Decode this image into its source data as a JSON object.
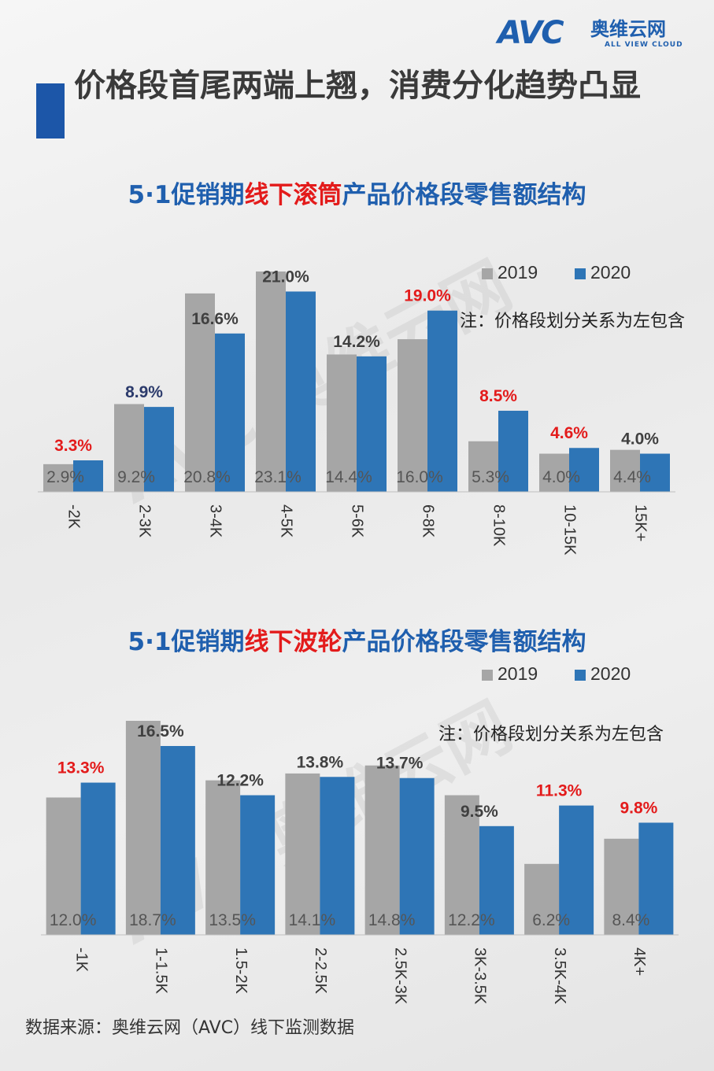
{
  "brand": {
    "logo_text": "AVC",
    "logo_cn": "奥维云网",
    "logo_en": "ALL VIEW CLOUD"
  },
  "headline": "价格段首尾两端上翘，消费分化趋势凸显",
  "colors": {
    "y2019": "#a6a6a6",
    "y2020": "#2e75b6",
    "title_blue": "#1f5fae",
    "highlight_red": "#e31b1b",
    "label_dark": "#404040"
  },
  "source": "数据来源：奥维云网（AVC）线下监测数据",
  "charts": [
    {
      "title_pre": "5·1促销期",
      "title_hl": "线下滚筒",
      "title_post": "产品价格段零售额结构",
      "legend": [
        "2019",
        "2020"
      ],
      "note": "注：价格段划分关系为左包含"
    },
    {
      "title_pre": "5·1促销期",
      "title_hl": "线下波轮",
      "title_post": "产品价格段零售额结构",
      "legend": [
        "2019",
        "2020"
      ],
      "note": "注：价格段划分关系为左包含"
    }
  ],
  "chart_data": [
    {
      "type": "bar",
      "title": "5·1促销期线下滚筒产品价格段零售额结构",
      "categories": [
        "-2K",
        "2-3K",
        "3-4K",
        "4-5K",
        "5-6K",
        "6-8K",
        "8-10K",
        "10-15K",
        "15K+"
      ],
      "series": [
        {
          "name": "2019",
          "values": [
            2.9,
            9.2,
            20.8,
            23.1,
            14.4,
            16.0,
            5.3,
            4.0,
            4.4
          ],
          "labels": [
            "2.9%",
            "9.2%",
            "20.8%",
            "23.1%",
            "14.4%",
            "16.0%",
            "5.3%",
            "4.0%",
            "4.4%"
          ]
        },
        {
          "name": "2020",
          "values": [
            3.3,
            8.9,
            16.6,
            21.0,
            14.2,
            19.0,
            8.5,
            4.6,
            4.0
          ],
          "labels": [
            "3.3%",
            "8.9%",
            "16.6%",
            "21.0%",
            "14.2%",
            "19.0%",
            "8.5%",
            "4.6%",
            "4.0%"
          ],
          "label_colors": [
            "red",
            "navy",
            "dark",
            "dark",
            "dark",
            "red",
            "red",
            "red",
            "dark"
          ]
        }
      ],
      "legend_position": "top-right",
      "grid": false
    },
    {
      "type": "bar",
      "title": "5·1促销期线下波轮产品价格段零售额结构",
      "categories": [
        "-1K",
        "1-1.5K",
        "1.5-2K",
        "2-2.5K",
        "2.5K-3K",
        "3K-3.5K",
        "3.5K-4K",
        "4K+"
      ],
      "series": [
        {
          "name": "2019",
          "values": [
            12.0,
            18.7,
            13.5,
            14.1,
            14.8,
            12.2,
            6.2,
            8.4
          ],
          "labels": [
            "12.0%",
            "18.7%",
            "13.5%",
            "14.1%",
            "14.8%",
            "12.2%",
            "6.2%",
            "8.4%"
          ]
        },
        {
          "name": "2020",
          "values": [
            13.3,
            16.5,
            12.2,
            13.8,
            13.7,
            9.5,
            11.3,
            9.8
          ],
          "labels": [
            "13.3%",
            "16.5%",
            "12.2%",
            "13.8%",
            "13.7%",
            "9.5%",
            "11.3%",
            "9.8%"
          ],
          "label_colors": [
            "red",
            "dark",
            "dark",
            "dark",
            "dark",
            "dark",
            "red",
            "red"
          ]
        }
      ],
      "legend_position": "top-right",
      "grid": false
    }
  ]
}
